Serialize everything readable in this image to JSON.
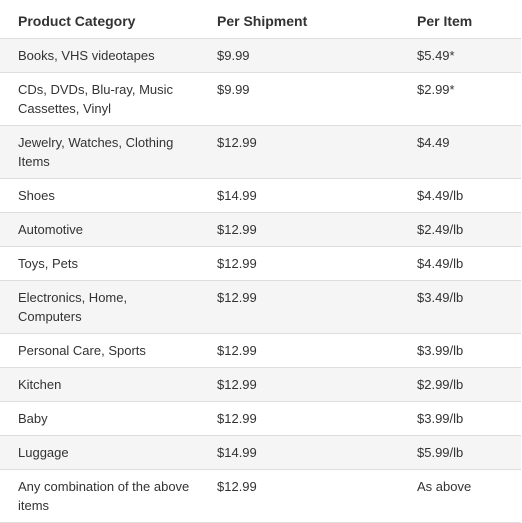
{
  "headers": {
    "category": "Product Category",
    "per_shipment": "Per Shipment",
    "per_item": "Per Item"
  },
  "rows": [
    {
      "category": "Books, VHS videotapes",
      "per_shipment": "$9.99",
      "per_item": "$5.49*"
    },
    {
      "category": "CDs, DVDs, Blu-ray, Music Cassettes, Vinyl",
      "per_shipment": "$9.99",
      "per_item": "$2.99*"
    },
    {
      "category": "Jewelry, Watches, Clothing Items",
      "per_shipment": "$12.99",
      "per_item": "$4.49"
    },
    {
      "category": "Shoes",
      "per_shipment": "$14.99",
      "per_item": "$4.49/lb"
    },
    {
      "category": "Automotive",
      "per_shipment": "$12.99",
      "per_item": "$2.49/lb"
    },
    {
      "category": "Toys, Pets",
      "per_shipment": "$12.99",
      "per_item": "$4.49/lb"
    },
    {
      "category": "Electronics, Home, Computers",
      "per_shipment": "$12.99",
      "per_item": "$3.49/lb"
    },
    {
      "category": "Personal Care, Sports",
      "per_shipment": "$12.99",
      "per_item": "$3.99/lb"
    },
    {
      "category": "Kitchen",
      "per_shipment": "$12.99",
      "per_item": "$2.99/lb"
    },
    {
      "category": "Baby",
      "per_shipment": "$12.99",
      "per_item": "$3.99/lb"
    },
    {
      "category": "Luggage",
      "per_shipment": "$14.99",
      "per_item": "$5.99/lb"
    },
    {
      "category": "Any combination of the above items",
      "per_shipment": "$12.99",
      "per_item": "As above"
    }
  ]
}
